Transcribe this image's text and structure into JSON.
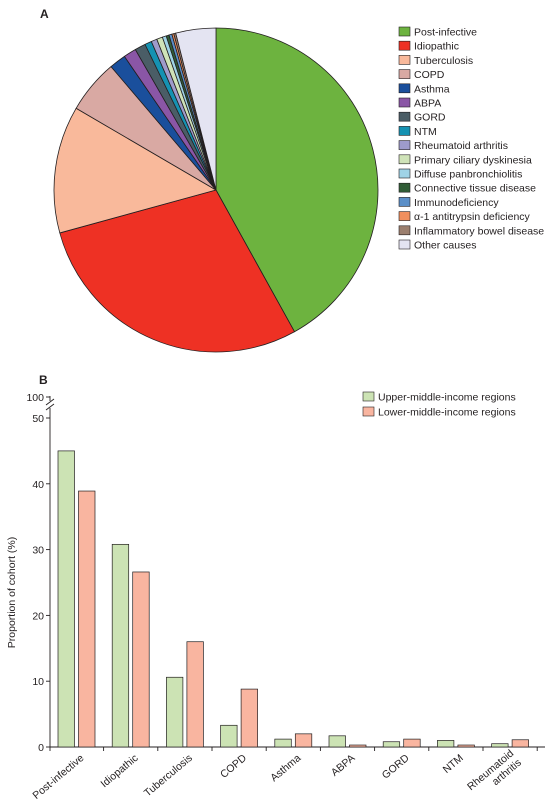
{
  "colors": {
    "Post-infective": "#6db33f",
    "Idiopathic": "#ee3124",
    "Tuberculosis": "#f9b99b",
    "COPD": "#d9a9a3",
    "Asthma": "#1a4f9c",
    "ABPA": "#8a56a6",
    "GORD": "#4a5d66",
    "NTM": "#1592b2",
    "Rheumatoid arthritis": "#9e9bcb",
    "Primary ciliary dyskinesia": "#cfe3b8",
    "Diffuse panbronchiolitis": "#9fd3e6",
    "Connective tissue disease": "#305c36",
    "Immunodeficiency": "#5b8fc8",
    "α-1 antitrypsin deficiency": "#f08f5e",
    "Inflammatory bowel disease": "#9c7f6e",
    "Other causes": "#e4e4f2",
    "upper": "#cce3b4",
    "lower": "#f9b5a0",
    "stroke": "#231f20"
  },
  "chart_data": [
    {
      "panel": "A",
      "type": "pie",
      "start": "top, clockwise",
      "legend_position": "right",
      "slices": [
        {
          "label": "Post-infective",
          "value": 43.0
        },
        {
          "label": "Idiopathic",
          "value": 29.5
        },
        {
          "label": "Tuberculosis",
          "value": 13.0
        },
        {
          "label": "COPD",
          "value": 5.5
        },
        {
          "label": "Asthma",
          "value": 1.7
        },
        {
          "label": "ABPA",
          "value": 1.3
        },
        {
          "label": "GORD",
          "value": 1.1
        },
        {
          "label": "NTM",
          "value": 0.7
        },
        {
          "label": "Rheumatoid arthritis",
          "value": 0.6
        },
        {
          "label": "Primary ciliary dyskinesia",
          "value": 0.6
        },
        {
          "label": "Diffuse panbronchiolitis",
          "value": 0.4
        },
        {
          "label": "Connective tissue disease",
          "value": 0.3
        },
        {
          "label": "Immunodeficiency",
          "value": 0.3
        },
        {
          "label": "α-1 antitrypsin deficiency",
          "value": 0.2
        },
        {
          "label": "Inflammatory bowel disease",
          "value": 0.2
        },
        {
          "label": "Other causes",
          "value": 4.1
        }
      ]
    },
    {
      "panel": "B",
      "type": "bar",
      "ylabel": "Proportion of cohort (%)",
      "ylim": [
        0,
        50
      ],
      "yticks": [
        0,
        10,
        20,
        30,
        40,
        50
      ],
      "ybreak_label": "100",
      "legend_position": "top-right",
      "categories": [
        "Post-infective",
        "Idiopathic",
        "Tuberculosis",
        "COPD",
        "Asthma",
        "ABPA",
        "GORD",
        "NTM",
        "Rheumatoid arthritis"
      ],
      "category_lines": [
        [
          "Post-infective"
        ],
        [
          "Idiopathic"
        ],
        [
          "Tuberculosis"
        ],
        [
          "COPD"
        ],
        [
          "Asthma"
        ],
        [
          "ABPA"
        ],
        [
          "GORD"
        ],
        [
          "NTM"
        ],
        [
          "Rheumatoid",
          "arthritis"
        ]
      ],
      "series": [
        {
          "name": "Upper-middle-income regions",
          "values": [
            45.0,
            30.8,
            10.6,
            3.3,
            1.2,
            1.7,
            0.8,
            1.0,
            0.5
          ]
        },
        {
          "name": "Lower-middle-income regions",
          "values": [
            38.9,
            26.6,
            16.0,
            8.8,
            2.0,
            0.3,
            1.2,
            0.3,
            1.1
          ]
        }
      ]
    }
  ]
}
